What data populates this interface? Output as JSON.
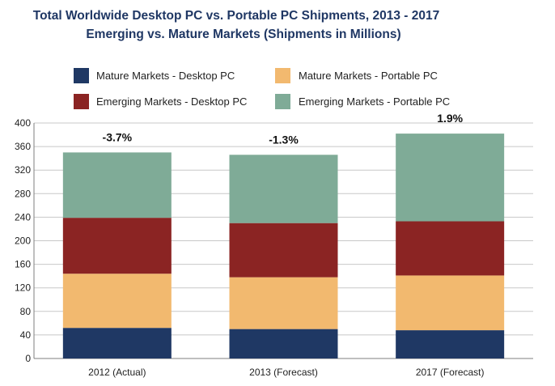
{
  "chart_data": {
    "type": "bar",
    "stacked": true,
    "title": "Total Worldwide Desktop PC vs. Portable PC Shipments, 2013 - 2017",
    "subtitle": "Emerging vs. Mature Markets (Shipments in Millions)",
    "xlabel": "",
    "ylabel": "",
    "categories": [
      "2012 (Actual)",
      "2013 (Forecast)",
      "2017 (Forecast)"
    ],
    "ylim": [
      0,
      400
    ],
    "yticks": [
      0,
      40,
      80,
      120,
      160,
      200,
      240,
      280,
      320,
      360,
      400
    ],
    "grid": true,
    "legend_position": "top",
    "series": [
      {
        "name": "Mature Markets - Desktop PC",
        "color": "#1f3864",
        "values": [
          52,
          50,
          48
        ]
      },
      {
        "name": "Mature Markets - Portable PC",
        "color": "#f2b96f",
        "values": [
          92,
          88,
          93
        ]
      },
      {
        "name": "Emerging Markets - Desktop PC",
        "color": "#8b2423",
        "values": [
          95,
          92,
          92
        ]
      },
      {
        "name": "Emerging Markets - Portable PC",
        "color": "#7fab97",
        "values": [
          111,
          116,
          149
        ]
      }
    ],
    "annotations": [
      "-3.7%",
      "-1.3%",
      "1.9%"
    ]
  }
}
